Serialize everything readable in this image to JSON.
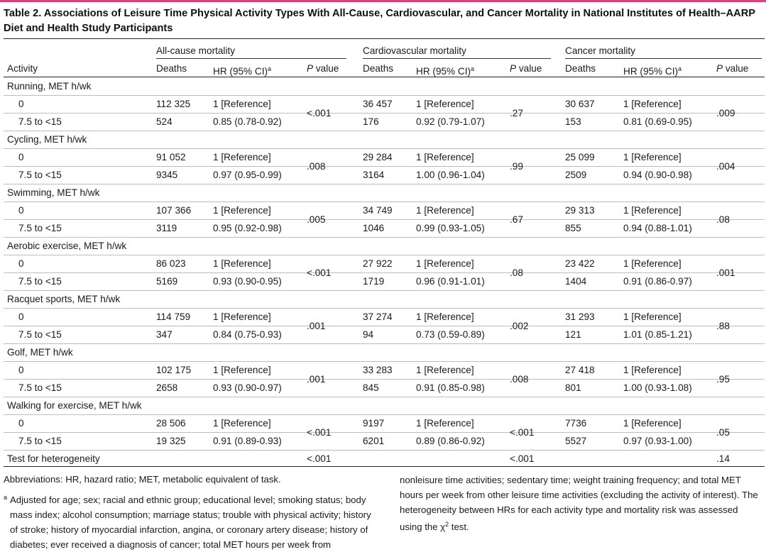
{
  "title": "Table 2. Associations of Leisure Time Physical Activity Types With All-Cause, Cardiovascular, and Cancer Mortality in National Institutes of Health–AARP Diet and Health Study Participants",
  "colors": {
    "accent": "#d6447a"
  },
  "header": {
    "groups": [
      "All-cause mortality",
      "Cardiovascular mortality",
      "Cancer mortality"
    ],
    "activity": "Activity",
    "deaths": "Deaths",
    "hr": "HR (95% CI)",
    "hr_sup": "a",
    "p_italic": "P",
    "p_rest": " value"
  },
  "sections": [
    {
      "label": "Running, MET h/wk",
      "rows": [
        {
          "level": "0",
          "d": [
            "112 325",
            "36 457",
            "30 637"
          ],
          "hr": [
            "1 [Reference]",
            "1 [Reference]",
            "1 [Reference]"
          ]
        },
        {
          "level": "7.5 to <15",
          "d": [
            "524",
            "176",
            "153"
          ],
          "hr": [
            "0.85 (0.78-0.92)",
            "0.92 (0.79-1.07)",
            "0.81 (0.69-0.95)"
          ]
        }
      ],
      "p": [
        "<.001",
        ".27",
        ".009"
      ]
    },
    {
      "label": "Cycling, MET h/wk",
      "rows": [
        {
          "level": "0",
          "d": [
            "91 052",
            "29 284",
            "25 099"
          ],
          "hr": [
            "1 [Reference]",
            "1 [Reference]",
            "1 [Reference]"
          ]
        },
        {
          "level": "7.5 to <15",
          "d": [
            "9345",
            "3164",
            "2509"
          ],
          "hr": [
            "0.97 (0.95-0.99)",
            "1.00 (0.96-1.04)",
            "0.94 (0.90-0.98)"
          ]
        }
      ],
      "p": [
        ".008",
        ".99",
        ".004"
      ]
    },
    {
      "label": "Swimming, MET h/wk",
      "rows": [
        {
          "level": "0",
          "d": [
            "107 366",
            "34 749",
            "29 313"
          ],
          "hr": [
            "1 [Reference]",
            "1 [Reference]",
            "1 [Reference]"
          ]
        },
        {
          "level": "7.5 to <15",
          "d": [
            "3119",
            "1046",
            "855"
          ],
          "hr": [
            "0.95 (0.92-0.98)",
            "0.99 (0.93-1.05)",
            "0.94 (0.88-1.01)"
          ]
        }
      ],
      "p": [
        ".005",
        ".67",
        ".08"
      ]
    },
    {
      "label": "Aerobic exercise, MET h/wk",
      "rows": [
        {
          "level": "0",
          "d": [
            "86 023",
            "27 922",
            "23 422"
          ],
          "hr": [
            "1 [Reference]",
            "1 [Reference]",
            "1 [Reference]"
          ]
        },
        {
          "level": "7.5 to <15",
          "d": [
            "5169",
            "1719",
            "1404"
          ],
          "hr": [
            "0.93 (0.90-0.95)",
            "0.96 (0.91-1.01)",
            "0.91 (0.86-0.97)"
          ]
        }
      ],
      "p": [
        "<.001",
        ".08",
        ".001"
      ]
    },
    {
      "label": "Racquet sports, MET h/wk",
      "rows": [
        {
          "level": "0",
          "d": [
            "114 759",
            "37 274",
            "31 293"
          ],
          "hr": [
            "1 [Reference]",
            "1 [Reference]",
            "1 [Reference]"
          ]
        },
        {
          "level": "7.5 to <15",
          "d": [
            "347",
            "94",
            "121"
          ],
          "hr": [
            "0.84 (0.75-0.93)",
            "0.73 (0.59-0.89)",
            "1.01 (0.85-1.21)"
          ]
        }
      ],
      "p": [
        ".001",
        ".002",
        ".88"
      ]
    },
    {
      "label": "Golf, MET h/wk",
      "rows": [
        {
          "level": "0",
          "d": [
            "102 175",
            "33 283",
            "27 418"
          ],
          "hr": [
            "1 [Reference]",
            "1 [Reference]",
            "1 [Reference]"
          ]
        },
        {
          "level": "7.5 to <15",
          "d": [
            "2658",
            "845",
            "801"
          ],
          "hr": [
            "0.93 (0.90-0.97)",
            "0.91 (0.85-0.98)",
            "1.00 (0.93-1.08)"
          ]
        }
      ],
      "p": [
        ".001",
        ".008",
        ".95"
      ]
    },
    {
      "label": "Walking for exercise, MET h/wk",
      "rows": [
        {
          "level": "0",
          "d": [
            "28 506",
            "9197",
            "7736"
          ],
          "hr": [
            "1 [Reference]",
            "1 [Reference]",
            "1 [Reference]"
          ]
        },
        {
          "level": "7.5 to <15",
          "d": [
            "19 325",
            "6201",
            "5527"
          ],
          "hr": [
            "0.91 (0.89-0.93)",
            "0.89 (0.86-0.92)",
            "0.97 (0.93-1.00)"
          ]
        }
      ],
      "p": [
        "<.001",
        "<.001",
        ".05"
      ]
    }
  ],
  "heterogeneity": {
    "label": "Test for heterogeneity",
    "p": [
      "<.001",
      "<.001",
      ".14"
    ]
  },
  "footnotes": {
    "abbreviations": "Abbreviations: HR, hazard ratio; MET, metabolic equivalent of task.",
    "marker": "a",
    "adjusted_part1": "Adjusted for age; sex; racial and ethnic group; educational level; smoking status; body mass index; alcohol consumption; marriage status; trouble with physical activity; history of stroke; history of myocardial infarction, angina, or coronary artery disease; history of diabetes; ever received a diagnosis of cancer; total MET hours per week from",
    "adjusted_part2": "nonleisure time activities; sedentary time; weight training frequency; and total MET hours per week from other leisure time activities (excluding the activity of interest). The heterogeneity between HRs for each activity type and mortality risk was assessed using the χ",
    "chi_sup": "2",
    "adjusted_end": " test."
  }
}
